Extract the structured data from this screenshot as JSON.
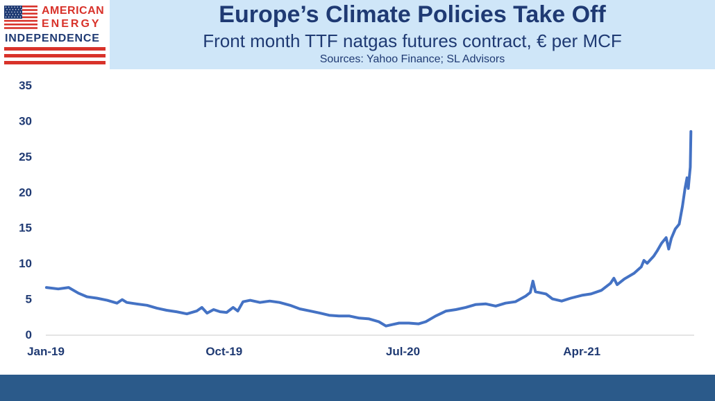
{
  "header": {
    "title": "Europe’s Climate Policies Take Off",
    "subtitle": "Front month TTF natgas futures contract, € per MCF",
    "sources": "Sources: Yahoo Finance; SL Advisors"
  },
  "logo": {
    "line1": "AMERICAN",
    "line2": "ENERGY",
    "line3": "INDEPENDENCE",
    "colors": {
      "red": "#d8322a",
      "blue": "#1f3a73"
    }
  },
  "colors": {
    "header_background": "#cfe6f8",
    "footer_band": "#2b5a8a",
    "series_line": "#4472c4",
    "text": "#1f3a73"
  },
  "chart_data": {
    "type": "line",
    "title": "",
    "xlabel": "",
    "ylabel": "",
    "ylim": [
      0,
      35
    ],
    "yticks": [
      0,
      5,
      10,
      15,
      20,
      25,
      30,
      35
    ],
    "xlim": [
      "2019-01",
      "2021-10"
    ],
    "xticks": [
      {
        "label": "Jan-19",
        "value": "2019-01"
      },
      {
        "label": "Oct-19",
        "value": "2019-10"
      },
      {
        "label": "Jul-20",
        "value": "2020-07"
      },
      {
        "label": "Apr-21",
        "value": "2021-04"
      }
    ],
    "grid": false,
    "legend": "none",
    "series": [
      {
        "points": [
          [
            "2019-01-02",
            6.6
          ],
          [
            "2019-01-20",
            6.4
          ],
          [
            "2019-02-05",
            6.6
          ],
          [
            "2019-02-20",
            5.8
          ],
          [
            "2019-03-05",
            5.3
          ],
          [
            "2019-03-20",
            5.1
          ],
          [
            "2019-04-05",
            4.8
          ],
          [
            "2019-04-20",
            4.4
          ],
          [
            "2019-04-28",
            4.9
          ],
          [
            "2019-05-05",
            4.5
          ],
          [
            "2019-05-20",
            4.3
          ],
          [
            "2019-06-05",
            4.1
          ],
          [
            "2019-06-20",
            3.7
          ],
          [
            "2019-07-05",
            3.4
          ],
          [
            "2019-07-20",
            3.2
          ],
          [
            "2019-08-05",
            2.9
          ],
          [
            "2019-08-20",
            3.3
          ],
          [
            "2019-08-28",
            3.8
          ],
          [
            "2019-09-05",
            3.0
          ],
          [
            "2019-09-15",
            3.5
          ],
          [
            "2019-09-25",
            3.2
          ],
          [
            "2019-10-05",
            3.1
          ],
          [
            "2019-10-15",
            3.8
          ],
          [
            "2019-10-22",
            3.3
          ],
          [
            "2019-10-30",
            4.6
          ],
          [
            "2019-11-10",
            4.8
          ],
          [
            "2019-11-25",
            4.5
          ],
          [
            "2019-12-10",
            4.7
          ],
          [
            "2019-12-25",
            4.5
          ],
          [
            "2020-01-10",
            4.1
          ],
          [
            "2020-01-25",
            3.6
          ],
          [
            "2020-02-10",
            3.3
          ],
          [
            "2020-02-25",
            3.0
          ],
          [
            "2020-03-10",
            2.7
          ],
          [
            "2020-03-25",
            2.6
          ],
          [
            "2020-04-10",
            2.6
          ],
          [
            "2020-04-25",
            2.3
          ],
          [
            "2020-05-10",
            2.2
          ],
          [
            "2020-05-25",
            1.8
          ],
          [
            "2020-06-05",
            1.2
          ],
          [
            "2020-06-15",
            1.4
          ],
          [
            "2020-06-25",
            1.6
          ],
          [
            "2020-07-10",
            1.6
          ],
          [
            "2020-07-25",
            1.5
          ],
          [
            "2020-08-05",
            1.8
          ],
          [
            "2020-08-20",
            2.6
          ],
          [
            "2020-09-05",
            3.3
          ],
          [
            "2020-09-20",
            3.5
          ],
          [
            "2020-10-05",
            3.8
          ],
          [
            "2020-10-20",
            4.2
          ],
          [
            "2020-11-05",
            4.3
          ],
          [
            "2020-11-20",
            4.0
          ],
          [
            "2020-12-05",
            4.4
          ],
          [
            "2020-12-20",
            4.6
          ],
          [
            "2021-01-05",
            5.4
          ],
          [
            "2021-01-12",
            5.9
          ],
          [
            "2021-01-16",
            7.5
          ],
          [
            "2021-01-20",
            6.0
          ],
          [
            "2021-02-05",
            5.7
          ],
          [
            "2021-02-15",
            5.0
          ],
          [
            "2021-03-01",
            4.7
          ],
          [
            "2021-03-15",
            5.1
          ],
          [
            "2021-04-01",
            5.5
          ],
          [
            "2021-04-15",
            5.7
          ],
          [
            "2021-05-01",
            6.2
          ],
          [
            "2021-05-15",
            7.2
          ],
          [
            "2021-05-20",
            7.9
          ],
          [
            "2021-05-25",
            7.0
          ],
          [
            "2021-06-05",
            7.8
          ],
          [
            "2021-06-20",
            8.6
          ],
          [
            "2021-07-01",
            9.5
          ],
          [
            "2021-07-05",
            10.4
          ],
          [
            "2021-07-10",
            10.0
          ],
          [
            "2021-07-20",
            11.0
          ],
          [
            "2021-07-25",
            11.7
          ],
          [
            "2021-08-01",
            12.8
          ],
          [
            "2021-08-08",
            13.6
          ],
          [
            "2021-08-12",
            12.0
          ],
          [
            "2021-08-16",
            13.5
          ],
          [
            "2021-08-22",
            14.8
          ],
          [
            "2021-08-28",
            15.5
          ],
          [
            "2021-09-02",
            18.0
          ],
          [
            "2021-09-06",
            20.5
          ],
          [
            "2021-09-09",
            22.0
          ],
          [
            "2021-09-11",
            20.5
          ],
          [
            "2021-09-13",
            22.5
          ],
          [
            "2021-09-14",
            23.5
          ],
          [
            "2021-09-15",
            28.5
          ]
        ]
      }
    ]
  }
}
